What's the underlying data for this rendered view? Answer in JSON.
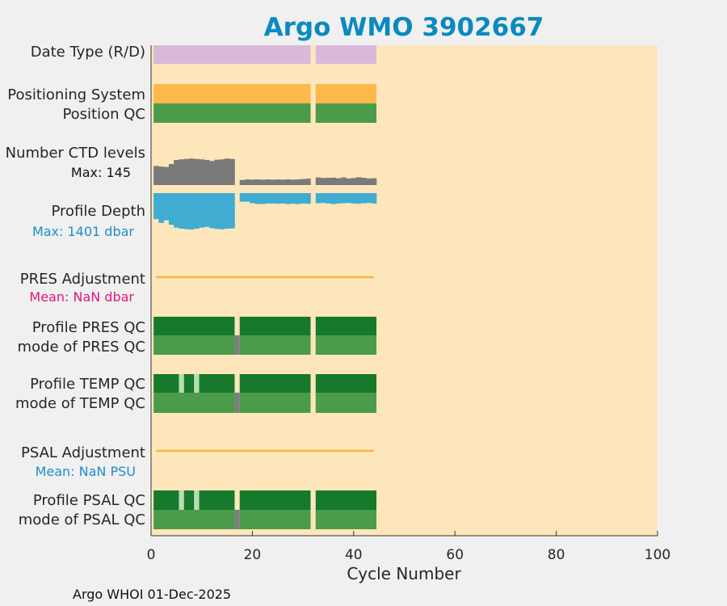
{
  "chart_data": {
    "type": "bar",
    "title": "Argo WMO 3902667",
    "xlabel": "Cycle Number",
    "xlim": [
      0,
      100
    ],
    "xticks": [
      0,
      20,
      40,
      60,
      80,
      100
    ],
    "footer": "Argo WHOI 01-Dec-2025",
    "colors": {
      "title": "#0a8abf",
      "background": "#fde6bb",
      "date_type": "#d9b9da",
      "positioning": "#fdb94b",
      "qc_good": "#4a9b4a",
      "qc_profile": "#17792b",
      "qc_light": "#b7ddb5",
      "qc_gray": "#7d7d7d",
      "ctd": "#7a7a7a",
      "depth": "#41acd2",
      "adjustment": "#f7b445",
      "pres_mean": "#e0177d",
      "psal_mean": "#1a8fc7"
    },
    "row_labels": {
      "date_type": "Date Type (R/D)",
      "positioning": "Positioning System",
      "position_qc": "Position QC",
      "ctd_levels": "Number CTD levels",
      "ctd_max": "Max: 145",
      "profile_depth": "Profile Depth",
      "depth_max": "Max: 1401 dbar",
      "pres_adjustment": "PRES Adjustment",
      "pres_mean": "Mean:  NaN dbar",
      "profile_pres_qc": "Profile PRES QC",
      "mode_pres_qc": "mode of PRES QC",
      "profile_temp_qc": "Profile TEMP QC",
      "mode_temp_qc": "mode of TEMP QC",
      "psal_adjustment": "PSAL Adjustment",
      "psal_mean": "Mean:  NaN PSU",
      "profile_psal_qc": "Profile PSAL QC",
      "mode_psal_qc": "mode of PSAL QC"
    },
    "cycle_segments": [
      [
        0.5,
        31.5
      ],
      [
        32.5,
        44.5
      ]
    ],
    "adjustment_range": [
      1,
      44
    ],
    "ctd_levels": {
      "max": 145,
      "cycles": [
        1,
        2,
        3,
        4,
        5,
        6,
        7,
        8,
        9,
        10,
        11,
        12,
        13,
        14,
        15,
        16,
        18,
        19,
        20,
        21,
        22,
        23,
        24,
        25,
        26,
        27,
        28,
        29,
        30,
        31,
        33,
        34,
        35,
        36,
        37,
        38,
        39,
        40,
        41,
        42,
        43,
        44
      ],
      "values": [
        95,
        92,
        90,
        105,
        125,
        128,
        130,
        132,
        130,
        128,
        125,
        120,
        126,
        128,
        132,
        130,
        25,
        28,
        27,
        28,
        27,
        28,
        27,
        28,
        27,
        28,
        27,
        28,
        30,
        32,
        38,
        35,
        36,
        37,
        34,
        38,
        33,
        35,
        39,
        36,
        33,
        34
      ]
    },
    "profile_depth": {
      "max": 1401,
      "cycles": [
        1,
        2,
        3,
        4,
        5,
        6,
        7,
        8,
        9,
        10,
        11,
        12,
        13,
        14,
        15,
        16,
        18,
        19,
        20,
        21,
        22,
        23,
        24,
        25,
        26,
        27,
        28,
        29,
        30,
        31,
        33,
        34,
        35,
        36,
        37,
        38,
        39,
        40,
        41,
        42,
        43,
        44
      ],
      "values": [
        1000,
        1150,
        1050,
        1220,
        1330,
        1370,
        1390,
        1401,
        1370,
        1330,
        1300,
        1350,
        1380,
        1395,
        1370,
        1360,
        330,
        330,
        390,
        420,
        420,
        400,
        400,
        410,
        400,
        420,
        410,
        420,
        400,
        410,
        390,
        380,
        400,
        420,
        400,
        390,
        380,
        400,
        410,
        390,
        380,
        400
      ]
    },
    "profile_pres_qc": [
      [
        0.5,
        16.5,
        "qc_profile"
      ],
      [
        17.5,
        31.5,
        "qc_profile"
      ],
      [
        32.5,
        44.5,
        "qc_profile"
      ]
    ],
    "mode_pres_qc": [
      [
        0.5,
        16.5,
        "qc_good"
      ],
      [
        16.5,
        17.5,
        "qc_gray"
      ],
      [
        17.5,
        31.5,
        "qc_good"
      ],
      [
        32.5,
        44.5,
        "qc_good"
      ]
    ],
    "profile_temp_qc": [
      [
        0.5,
        5.5,
        "qc_profile"
      ],
      [
        5.5,
        6.5,
        "qc_light"
      ],
      [
        6.5,
        8.5,
        "qc_profile"
      ],
      [
        8.5,
        9.5,
        "qc_light"
      ],
      [
        9.5,
        16.5,
        "qc_profile"
      ],
      [
        17.5,
        31.5,
        "qc_profile"
      ],
      [
        32.5,
        44.5,
        "qc_profile"
      ]
    ],
    "mode_temp_qc": [
      [
        0.5,
        16.5,
        "qc_good"
      ],
      [
        16.5,
        17.5,
        "qc_gray"
      ],
      [
        17.5,
        31.5,
        "qc_good"
      ],
      [
        32.5,
        44.5,
        "qc_good"
      ]
    ],
    "profile_psal_qc": [
      [
        0.5,
        5.5,
        "qc_profile"
      ],
      [
        5.5,
        6.5,
        "qc_light"
      ],
      [
        6.5,
        8.5,
        "qc_profile"
      ],
      [
        8.5,
        9.5,
        "qc_light"
      ],
      [
        9.5,
        16.5,
        "qc_profile"
      ],
      [
        17.5,
        31.5,
        "qc_profile"
      ],
      [
        32.5,
        44.5,
        "qc_profile"
      ]
    ],
    "mode_psal_qc": [
      [
        0.5,
        16.5,
        "qc_good"
      ],
      [
        16.5,
        17.5,
        "qc_gray"
      ],
      [
        17.5,
        31.5,
        "qc_good"
      ],
      [
        32.5,
        44.5,
        "qc_good"
      ]
    ]
  }
}
